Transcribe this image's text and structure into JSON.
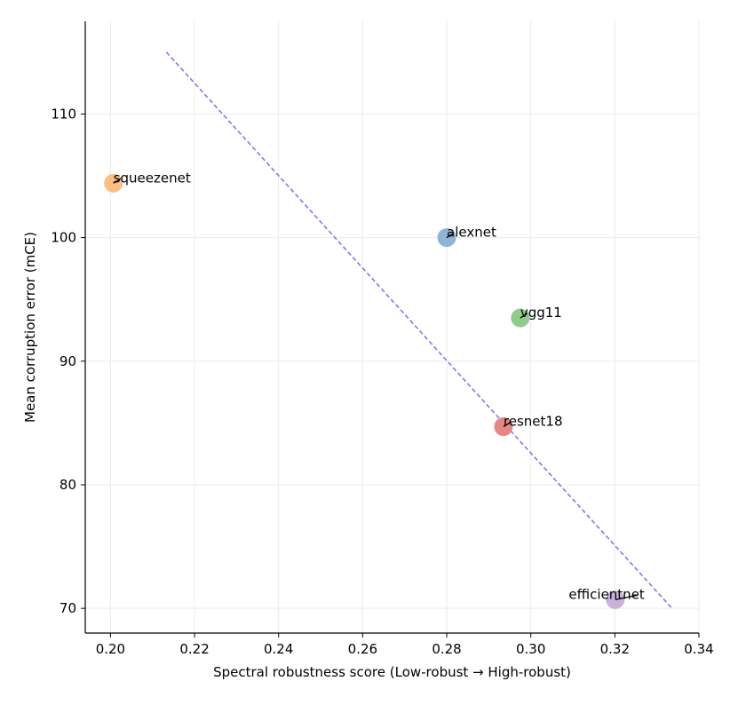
{
  "chart_data": {
    "type": "scatter",
    "title": "",
    "xlabel": "Spectral robustness score (Low-robust → High-robust)",
    "ylabel": "Mean corruption error (mCE)",
    "xlim": [
      0.194,
      0.34
    ],
    "ylim": [
      68,
      117.5
    ],
    "xticks": [
      0.2,
      0.22,
      0.24,
      0.26,
      0.28,
      0.3,
      0.32,
      0.34
    ],
    "xtick_labels": [
      "0.20",
      "0.22",
      "0.24",
      "0.26",
      "0.28",
      "0.30",
      "0.32",
      "0.34"
    ],
    "yticks": [
      70,
      80,
      90,
      100,
      110
    ],
    "ytick_labels": [
      "70",
      "80",
      "90",
      "100",
      "110"
    ],
    "grid": true,
    "points": [
      {
        "label": "alexnet",
        "x": 0.28,
        "y": 100.0,
        "color": "#8fb4d6"
      },
      {
        "label": "squeezenet",
        "x": 0.2007,
        "y": 104.4,
        "color": "#fdbd84"
      },
      {
        "label": "vgg11",
        "x": 0.2975,
        "y": 93.5,
        "color": "#8fcc8b"
      },
      {
        "label": "resnet18",
        "x": 0.2935,
        "y": 84.7,
        "color": "#e58787"
      },
      {
        "label": "efficientnet",
        "x": 0.3201,
        "y": 70.7,
        "color": "#c8b2dc"
      }
    ],
    "trend_line": {
      "x": [
        0.2133,
        0.3336
      ],
      "y": [
        115.0,
        70.0
      ],
      "color": "#7b7bea",
      "style": "dashed"
    }
  }
}
